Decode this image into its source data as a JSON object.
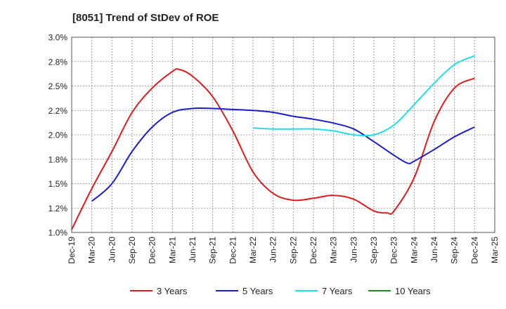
{
  "chart_data": {
    "type": "line",
    "title": "[8051]  Trend of StDev of ROE",
    "xlabel": "",
    "ylabel": "",
    "x_ticks": [
      "Dec-19",
      "Mar-20",
      "Jun-20",
      "Sep-20",
      "Dec-20",
      "Mar-21",
      "Jun-21",
      "Sep-21",
      "Dec-21",
      "Mar-22",
      "Jun-22",
      "Sep-22",
      "Dec-22",
      "Mar-23",
      "Jun-23",
      "Sep-23",
      "Dec-23",
      "Mar-24",
      "Jun-24",
      "Sep-24",
      "Dec-24",
      "Mar-25"
    ],
    "y_ticks": [
      "1.0%",
      "1.2%",
      "1.5%",
      "1.8%",
      "2.0%",
      "2.2%",
      "2.5%",
      "2.8%",
      "3.0%"
    ],
    "ylim": [
      1.0,
      3.0
    ],
    "grid": true,
    "legend_position": "bottom",
    "series": [
      {
        "name": "3 Years",
        "color": "#dd1c1c",
        "x": [
          "Dec-19",
          "Mar-20",
          "Jun-20",
          "Sep-20",
          "Dec-20",
          "Mar-21",
          "Apr-21",
          "Jun-21",
          "Sep-21",
          "Dec-21",
          "Mar-22",
          "Jun-22",
          "Sep-22",
          "Dec-22",
          "Mar-23",
          "Jun-23",
          "Sep-23",
          "Nov-23",
          "Dec-23",
          "Mar-24",
          "Jun-24",
          "Sep-24",
          "Dec-24"
        ],
        "values": [
          1.03,
          1.45,
          1.83,
          2.23,
          2.48,
          2.65,
          2.67,
          2.6,
          2.39,
          2.04,
          1.62,
          1.4,
          1.33,
          1.35,
          1.38,
          1.34,
          1.22,
          1.2,
          1.22,
          1.56,
          2.14,
          2.48,
          2.58
        ]
      },
      {
        "name": "5 Years",
        "color": "#1c1cc8",
        "x": [
          "Mar-20",
          "Jun-20",
          "Sep-20",
          "Dec-20",
          "Mar-21",
          "Jun-21",
          "Sep-21",
          "Dec-21",
          "Mar-22",
          "Jun-22",
          "Sep-22",
          "Dec-22",
          "Mar-23",
          "Jun-23",
          "Sep-23",
          "Dec-23",
          "Feb-24",
          "Mar-24",
          "Jun-24",
          "Sep-24",
          "Dec-24"
        ],
        "values": [
          1.32,
          1.5,
          1.83,
          2.08,
          2.23,
          2.27,
          2.27,
          2.26,
          2.25,
          2.23,
          2.19,
          2.16,
          2.12,
          2.06,
          1.93,
          1.79,
          1.71,
          1.73,
          1.85,
          1.98,
          2.08
        ]
      },
      {
        "name": "7 Years",
        "color": "#22dde8",
        "x": [
          "Mar-22",
          "Jun-22",
          "Sep-22",
          "Dec-22",
          "Mar-23",
          "Jun-23",
          "Sep-23",
          "Dec-23",
          "Mar-24",
          "Jun-24",
          "Sep-24",
          "Dec-24"
        ],
        "values": [
          2.07,
          2.06,
          2.06,
          2.06,
          2.04,
          2.0,
          2.0,
          2.1,
          2.31,
          2.53,
          2.72,
          2.81
        ]
      },
      {
        "name": "10 Years",
        "color": "#1f8c1f",
        "x": [],
        "values": []
      }
    ]
  }
}
